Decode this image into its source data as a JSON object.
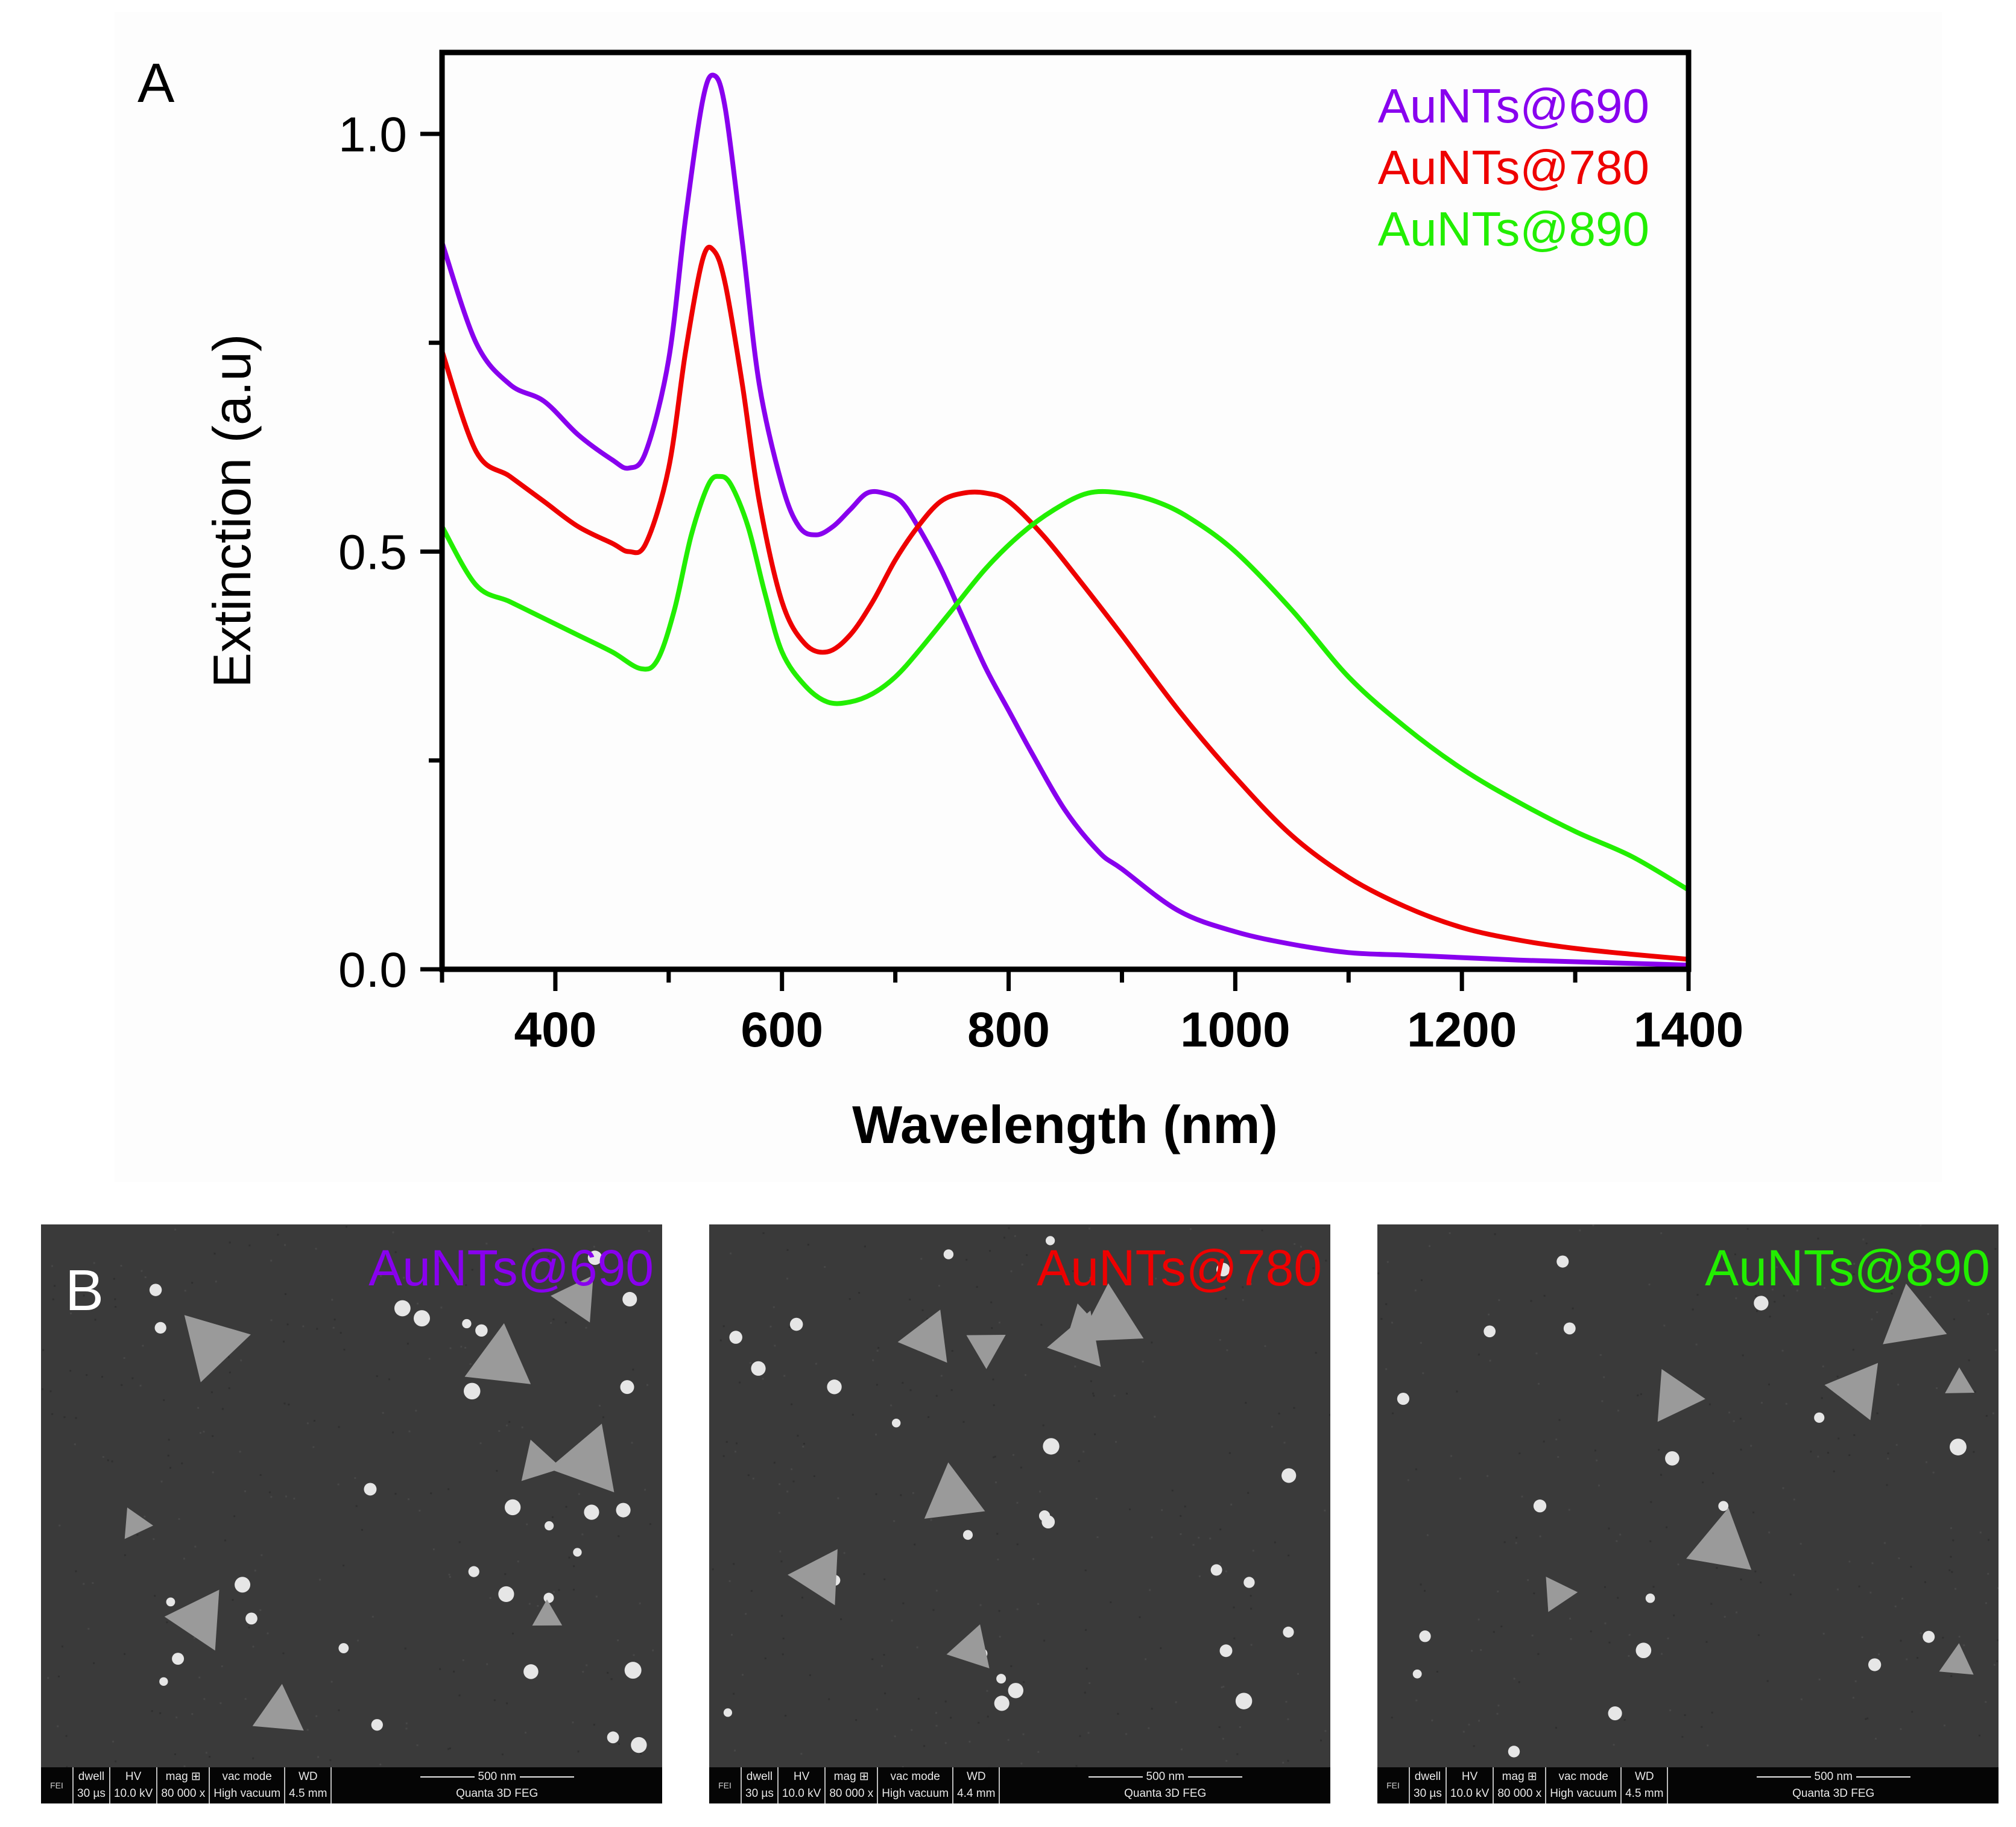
{
  "panel_a_letter": "A",
  "panel_b_letter": "B",
  "chart_data": {
    "type": "line",
    "title": "",
    "xlabel": "Wavelength (nm)",
    "ylabel": "Extinction (a.u)",
    "xlim": [
      300,
      1400
    ],
    "ylim": [
      0,
      1.1
    ],
    "xticks": [
      400,
      600,
      800,
      1000,
      1200,
      1400
    ],
    "xtick_labels": [
      "400",
      "600",
      "800",
      "1000",
      "1200",
      "1400"
    ],
    "yticks": [
      0.0,
      0.5,
      1.0
    ],
    "ytick_labels": [
      "0.0",
      "0.5",
      "1.0"
    ],
    "legend_position": "top-right",
    "series": [
      {
        "name": "AuNTs@690",
        "color": "#8800ee",
        "x": [
          300,
          330,
          360,
          390,
          420,
          450,
          465,
          480,
          500,
          515,
          530,
          540,
          550,
          565,
          580,
          600,
          615,
          630,
          645,
          660,
          675,
          690,
          705,
          720,
          740,
          760,
          780,
          800,
          820,
          850,
          880,
          900,
          950,
          1000,
          1050,
          1100,
          1150,
          1200,
          1250,
          1300,
          1350,
          1400
        ],
        "y": [
          0.87,
          0.75,
          0.7,
          0.68,
          0.64,
          0.61,
          0.6,
          0.62,
          0.73,
          0.9,
          1.04,
          1.07,
          1.03,
          0.87,
          0.7,
          0.58,
          0.53,
          0.52,
          0.53,
          0.55,
          0.57,
          0.57,
          0.56,
          0.53,
          0.48,
          0.42,
          0.36,
          0.31,
          0.26,
          0.19,
          0.14,
          0.12,
          0.07,
          0.045,
          0.03,
          0.02,
          0.017,
          0.014,
          0.011,
          0.009,
          0.007,
          0.005
        ]
      },
      {
        "name": "AuNTs@780",
        "color": "#ee0000",
        "x": [
          300,
          330,
          360,
          390,
          420,
          450,
          465,
          480,
          500,
          515,
          530,
          540,
          550,
          565,
          580,
          600,
          620,
          640,
          660,
          680,
          700,
          720,
          740,
          760,
          780,
          800,
          830,
          860,
          900,
          950,
          1000,
          1050,
          1100,
          1150,
          1200,
          1250,
          1300,
          1350,
          1400
        ],
        "y": [
          0.74,
          0.62,
          0.59,
          0.56,
          0.53,
          0.51,
          0.5,
          0.51,
          0.6,
          0.74,
          0.85,
          0.86,
          0.82,
          0.7,
          0.56,
          0.44,
          0.39,
          0.38,
          0.4,
          0.44,
          0.49,
          0.53,
          0.56,
          0.57,
          0.57,
          0.56,
          0.52,
          0.47,
          0.4,
          0.31,
          0.23,
          0.16,
          0.11,
          0.075,
          0.05,
          0.035,
          0.025,
          0.018,
          0.012
        ]
      },
      {
        "name": "AuNTs@890",
        "color": "#22ee00",
        "x": [
          300,
          330,
          360,
          390,
          420,
          450,
          475,
          490,
          505,
          520,
          535,
          545,
          555,
          570,
          585,
          600,
          620,
          640,
          660,
          680,
          700,
          720,
          750,
          780,
          810,
          840,
          870,
          900,
          930,
          960,
          1000,
          1050,
          1100,
          1150,
          1200,
          1250,
          1300,
          1350,
          1400
        ],
        "y": [
          0.53,
          0.46,
          0.44,
          0.42,
          0.4,
          0.38,
          0.36,
          0.37,
          0.43,
          0.52,
          0.58,
          0.59,
          0.58,
          0.53,
          0.45,
          0.38,
          0.34,
          0.32,
          0.32,
          0.33,
          0.35,
          0.38,
          0.43,
          0.48,
          0.52,
          0.55,
          0.57,
          0.57,
          0.56,
          0.54,
          0.5,
          0.43,
          0.35,
          0.29,
          0.24,
          0.2,
          0.165,
          0.135,
          0.095
        ]
      }
    ]
  },
  "sem_panels": [
    {
      "label": "AuNTs@690",
      "label_color": "#8800ee",
      "databar": {
        "logo": "FEI",
        "dwell_label": "dwell",
        "dwell": "30 µs",
        "hv_label": "HV",
        "hv": "10.0 kV",
        "mag_label": "mag ⊞",
        "mag": "80 000 x",
        "vac_label": "vac mode",
        "vac": "High vacuum",
        "wd_label": "WD",
        "wd": "4.5 mm",
        "scale": "500 nm",
        "instrument": "Quanta 3D FEG"
      }
    },
    {
      "label": "AuNTs@780",
      "label_color": "#ee0000",
      "databar": {
        "logo": "FEI",
        "dwell_label": "dwell",
        "dwell": "30 µs",
        "hv_label": "HV",
        "hv": "10.0 kV",
        "mag_label": "mag ⊞",
        "mag": "80 000 x",
        "vac_label": "vac mode",
        "vac": "High vacuum",
        "wd_label": "WD",
        "wd": "4.4 mm",
        "scale": "500 nm",
        "instrument": "Quanta 3D FEG"
      }
    },
    {
      "label": "AuNTs@890",
      "label_color": "#22ee00",
      "databar": {
        "logo": "FEI",
        "dwell_label": "dwell",
        "dwell": "30 µs",
        "hv_label": "HV",
        "hv": "10.0 kV",
        "mag_label": "mag ⊞",
        "mag": "80 000 x",
        "vac_label": "vac mode",
        "vac": "High vacuum",
        "wd_label": "WD",
        "wd": "4.5 mm",
        "scale": "500 nm",
        "instrument": "Quanta 3D FEG"
      }
    }
  ]
}
